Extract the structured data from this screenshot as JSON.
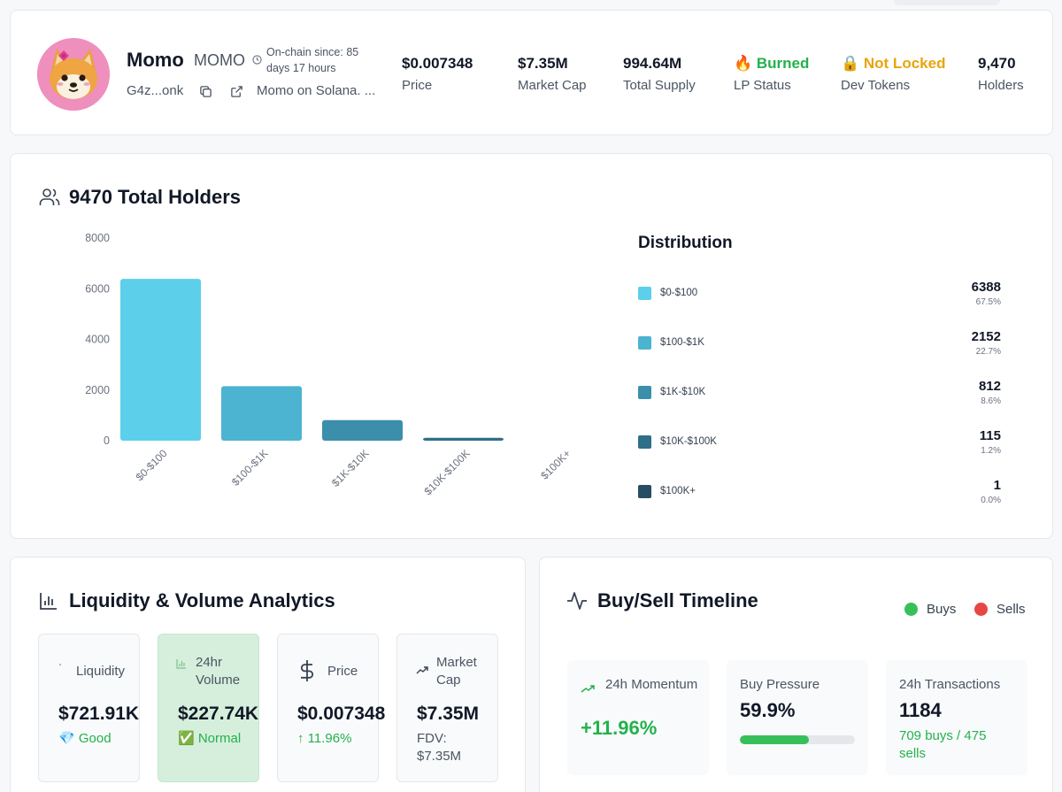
{
  "token": {
    "name": "Momo",
    "symbol": "MOMO",
    "onchain_since": "On-chain since: 85 days 17 hours",
    "address_short": "G4z...onk",
    "description": "Momo on Solana. ..."
  },
  "stats": [
    {
      "value": "$0.007348",
      "label": "Price"
    },
    {
      "value": "$7.35M",
      "label": "Market Cap"
    },
    {
      "value": "994.64M",
      "label": "Total Supply"
    },
    {
      "value": "🔥 Burned",
      "label": "LP Status"
    },
    {
      "value": "🔒 Not Locked",
      "label": "Dev Tokens"
    },
    {
      "value": "9,470",
      "label": "Holders"
    }
  ],
  "holders": {
    "title": "9470 Total Holders",
    "distribution_title": "Distribution",
    "distribution": [
      {
        "label": "$0-$100",
        "count": "6388",
        "pct": "67.5%",
        "color": "#5ccfea"
      },
      {
        "label": "$100-$1K",
        "count": "2152",
        "pct": "22.7%",
        "color": "#4cb3d0"
      },
      {
        "label": "$1K-$10K",
        "count": "812",
        "pct": "8.6%",
        "color": "#3b8fab"
      },
      {
        "label": "$10K-$100K",
        "count": "115",
        "pct": "1.2%",
        "color": "#2f6f88"
      },
      {
        "label": "$100K+",
        "count": "1",
        "pct": "0.0%",
        "color": "#264e63"
      }
    ]
  },
  "chart_data": {
    "type": "bar",
    "title": "9470 Total Holders",
    "categories": [
      "$0-$100",
      "$100-$1K",
      "$1K-$10K",
      "$10K-$100K",
      "$100K+"
    ],
    "values": [
      6388,
      2152,
      812,
      115,
      1
    ],
    "colors": [
      "#5ccfea",
      "#4cb3d0",
      "#3b8fab",
      "#2f6f88",
      "#264e63"
    ],
    "yticks": [
      0,
      2000,
      4000,
      6000,
      8000
    ],
    "ylim": [
      0,
      8000
    ],
    "xlabel": "",
    "ylabel": "",
    "grid": false
  },
  "liquidity": {
    "title": "Liquidity & Volume Analytics",
    "cards": [
      {
        "label": "Liquidity",
        "value": "$721.91K",
        "sub": "💎 Good"
      },
      {
        "label": "24hr Volume",
        "value": "$227.74K",
        "sub": "✅ Normal"
      },
      {
        "label": "Price",
        "value": "$0.007348",
        "sub": "↑ 11.96%"
      },
      {
        "label": "Market Cap",
        "value": "$7.35M",
        "sub": "FDV: $7.35M"
      }
    ]
  },
  "timeline": {
    "title": "Buy/Sell Timeline",
    "legend_buys": "Buys",
    "legend_sells": "Sells",
    "momentum_label": "24h Momentum",
    "momentum_value": "+11.96%",
    "pressure_label": "Buy Pressure",
    "pressure_value": "59.9%",
    "pressure_fraction": 0.599,
    "tx_label": "24h Transactions",
    "tx_value": "1184",
    "tx_sub": "709 buys / 475 sells"
  },
  "colors": {
    "green": "#22b24c",
    "amber": "#e8a50c",
    "buy": "#37c05a",
    "sell": "#e84545"
  }
}
